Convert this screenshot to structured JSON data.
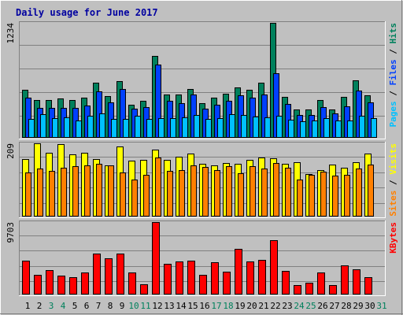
{
  "chart_data": {
    "type": "bar",
    "title": "Daily usage for June 2017",
    "categories": [
      "1",
      "2",
      "3",
      "4",
      "5",
      "6",
      "7",
      "8",
      "9",
      "10",
      "11",
      "12",
      "13",
      "14",
      "15",
      "16",
      "17",
      "18",
      "19",
      "20",
      "21",
      "22",
      "23",
      "24",
      "25",
      "26",
      "27",
      "28",
      "29",
      "30",
      "31"
    ],
    "weekend_days": [
      "3",
      "4",
      "10",
      "11",
      "17",
      "18",
      "24",
      "25",
      "31"
    ],
    "panels": [
      {
        "name": "hits-files-pages",
        "max_label": "1234",
        "ymax": 1234,
        "legend": [
          {
            "text": "Pages",
            "color": "#00c0ff"
          },
          {
            "text": " / ",
            "color": "#000000"
          },
          {
            "text": "Files",
            "color": "#0040ff"
          },
          {
            "text": " / ",
            "color": "#000000"
          },
          {
            "text": "Hits",
            "color": "#00805c"
          }
        ],
        "series": [
          {
            "name": "Hits",
            "color": "#00805c",
            "values": [
              517,
              405,
              403,
              424,
              409,
              432,
              588,
              447,
              612,
              353,
              401,
              883,
              468,
              461,
              525,
              371,
              435,
              474,
              543,
              513,
              588,
              1234,
              441,
              306,
              306,
              406,
              308,
              436,
              621,
              454,
              null
            ]
          },
          {
            "name": "Files",
            "color": "#0040ff",
            "values": [
              432,
              324,
              323,
              319,
              323,
              344,
              496,
              383,
              522,
              315,
              327,
              789,
              398,
              371,
              469,
              309,
              359,
              400,
              457,
              429,
              467,
              689,
              363,
              241,
              249,
              329,
              259,
              342,
              506,
              380,
              null
            ]
          },
          {
            "name": "Pages",
            "color": "#00c0ff",
            "values": [
              202,
              256,
              208,
              216,
              189,
              239,
              259,
              201,
              206,
              234,
              205,
              208,
              211,
              222,
              248,
              204,
              208,
              255,
              248,
              227,
              216,
              233,
              198,
              181,
              187,
              209,
              183,
              186,
              239,
              215,
              null
            ]
          }
        ]
      },
      {
        "name": "visits-sites",
        "max_label": "209",
        "ymax": 209,
        "legend": [
          {
            "text": "Sites",
            "color": "#ff8000"
          },
          {
            "text": " / ",
            "color": "#000000"
          },
          {
            "text": "Visits",
            "color": "#ffff00"
          }
        ],
        "series": [
          {
            "name": "Visits",
            "color": "#ffff00",
            "values": [
              164,
              209,
              183,
              207,
              177,
              182,
              164,
              146,
              200,
              159,
              161,
              192,
              161,
              170,
              180,
              150,
              145,
              153,
              150,
              162,
              168,
              166,
              151,
              156,
              122,
              133,
              149,
              140,
              156,
              180,
              null
            ]
          },
          {
            "name": "Sites",
            "color": "#ff8000",
            "values": [
              126,
              137,
              131,
              139,
              144,
              147,
              151,
              145,
              125,
              105,
              120,
              168,
              130,
              133,
              146,
              142,
              133,
              144,
              123,
              144,
              136,
              152,
              139,
              106,
              119,
              127,
              117,
              118,
              137,
              148,
              null
            ]
          }
        ]
      },
      {
        "name": "kbytes",
        "max_label": "9703",
        "ymax": 9703,
        "legend": [
          {
            "text": "KBytes",
            "color": "#ff0000"
          }
        ],
        "series": [
          {
            "name": "KBytes",
            "color": "#ff0000",
            "values": [
              4520,
              2671,
              3256,
              2571,
              2335,
              2971,
              5519,
              4888,
              5519,
              2906,
              1373,
              9703,
              4062,
              4394,
              4549,
              2671,
              4287,
              3101,
              6076,
              4408,
              4604,
              7328,
              3180,
              1314,
              1588,
              2963,
              1280,
              3878,
              3385,
              2309,
              null
            ]
          }
        ]
      }
    ]
  }
}
